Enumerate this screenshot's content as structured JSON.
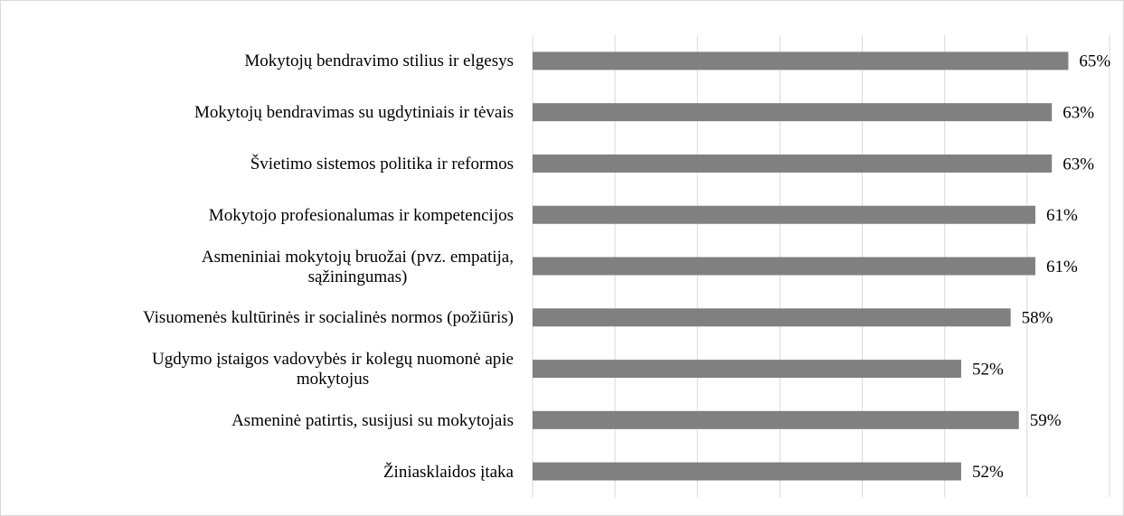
{
  "chart_data": {
    "type": "barh",
    "categories": [
      "Mokytojų bendravimo stilius ir elgesys",
      "Mokytojų bendravimas su ugdytiniais ir tėvais",
      "Švietimo sistemos politika ir reformos",
      "Mokytojo profesionalumas ir kompetencijos",
      "Asmeniniai mokytojų bruožai (pvz. empatija,\nsąžiningumas)",
      "Visuomenės kultūrinės ir socialinės normos (požiūris)",
      "Ugdymo įstaigos vadovybės ir kolegų nuomonė apie\nmokytojus",
      "Asmeninė patirtis, susijusi su mokytojais",
      "Žiniasklaidos įtaka"
    ],
    "values": [
      65,
      63,
      63,
      61,
      61,
      58,
      52,
      59,
      52
    ],
    "value_labels": [
      "65%",
      "63%",
      "63%",
      "61%",
      "61%",
      "58%",
      "52%",
      "59%",
      "52%"
    ],
    "color": "#808080",
    "xlim": [
      0,
      70
    ],
    "xticks": [
      0,
      10,
      20,
      30,
      40,
      50,
      60,
      70
    ],
    "grid": true
  }
}
